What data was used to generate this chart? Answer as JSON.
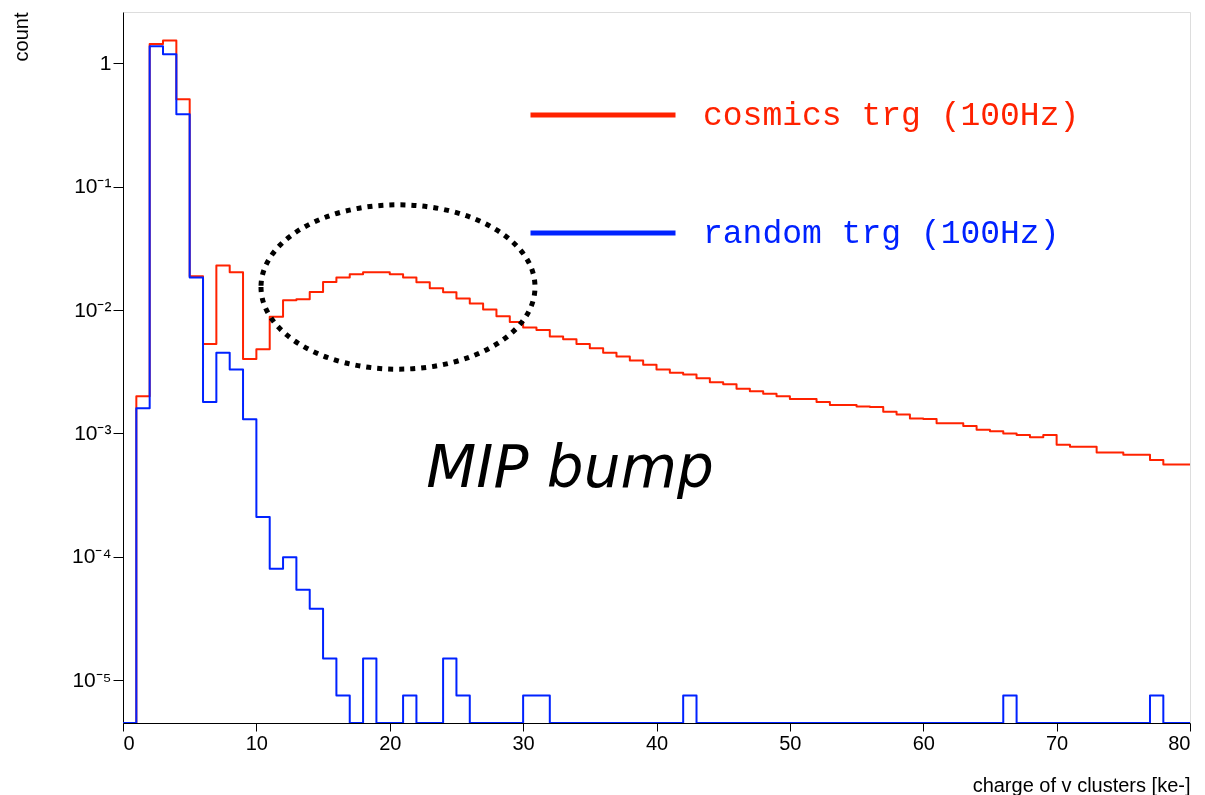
{
  "chart_data": {
    "type": "histogram",
    "xlabel": "charge of v clusters [ke-]",
    "ylabel": "count",
    "bins": [
      0,
      1,
      2,
      3,
      4,
      5,
      6,
      7,
      8,
      9,
      10,
      11,
      12,
      13,
      14,
      15,
      16,
      17,
      18,
      19,
      20,
      21,
      22,
      23,
      24,
      25,
      26,
      27,
      28,
      29,
      30,
      31,
      32,
      33,
      34,
      35,
      36,
      37,
      38,
      39,
      40,
      41,
      42,
      43,
      44,
      45,
      46,
      47,
      48,
      49,
      50,
      51,
      52,
      53,
      54,
      55,
      56,
      57,
      58,
      59,
      60,
      61,
      62,
      63,
      64,
      65,
      66,
      67,
      68,
      69,
      70,
      71,
      72,
      73,
      74,
      75,
      76,
      77,
      78,
      79,
      80
    ],
    "series": [
      {
        "name": "cosmics trg (100Hz)",
        "color": "#ff2200",
        "values": [
          null,
          0.002,
          1.43,
          1.53,
          0.51,
          0.0188,
          0.0053,
          0.0229,
          0.0202,
          0.004,
          0.0048,
          0.0088,
          0.012,
          0.0122,
          0.014,
          0.0169,
          0.0183,
          0.0195,
          0.0202,
          0.0202,
          0.0195,
          0.0183,
          0.0168,
          0.015,
          0.0139,
          0.0124,
          0.0113,
          0.0101,
          0.0089,
          0.008,
          0.0072,
          0.0069,
          0.0061,
          0.0058,
          0.0053,
          0.0049,
          0.0045,
          0.0042,
          0.0039,
          0.0036,
          0.0033,
          0.0031,
          0.003,
          0.0028,
          0.0026,
          0.0025,
          0.0023,
          0.0022,
          0.0021,
          0.002,
          0.0019,
          0.0019,
          0.0018,
          0.0017,
          0.0017,
          0.00165,
          0.00164,
          0.0015,
          0.00142,
          0.00132,
          0.00131,
          0.00121,
          0.00121,
          0.00115,
          0.00107,
          0.00104,
          0.001,
          0.00097,
          0.00093,
          0.00097,
          0.00081,
          0.00078,
          0.00078,
          0.0007,
          0.0007,
          0.00067,
          0.00067,
          0.00061,
          0.00056,
          0.00056
        ]
      },
      {
        "name": "random trg (100Hz)",
        "color": "#0022ff",
        "values": [
          null,
          0.0016,
          1.37,
          1.18,
          0.386,
          0.0183,
          0.0018,
          0.0045,
          0.0033,
          0.0013,
          0.00021,
          8e-05,
          9.9e-05,
          5.4e-05,
          3.8e-05,
          1.5e-05,
          7.5e-06,
          null,
          1.5e-05,
          null,
          null,
          7.5e-06,
          null,
          null,
          1.5e-05,
          7.5e-06,
          null,
          null,
          null,
          null,
          7.5e-06,
          7.5e-06,
          null,
          null,
          null,
          null,
          null,
          null,
          null,
          null,
          null,
          null,
          7.5e-06,
          null,
          null,
          null,
          null,
          null,
          null,
          null,
          null,
          null,
          null,
          null,
          null,
          null,
          null,
          null,
          null,
          null,
          null,
          null,
          null,
          null,
          null,
          null,
          7.5e-06,
          null,
          null,
          null,
          null,
          null,
          null,
          null,
          null,
          null,
          null,
          7.5e-06,
          null,
          null
        ]
      }
    ],
    "xlim": [
      0,
      80
    ],
    "xticks": [
      0,
      10,
      20,
      30,
      40,
      50,
      60,
      70,
      80
    ],
    "ylim": [
      4.5e-06,
      2.6
    ],
    "yticks": [
      {
        "value": 1e-05,
        "label": "10⁻⁵"
      },
      {
        "value": 0.0001,
        "label": "10⁻⁴"
      },
      {
        "value": 0.001,
        "label": "10⁻³"
      },
      {
        "value": 0.01,
        "label": "10⁻²"
      },
      {
        "value": 0.1,
        "label": "10⁻¹"
      },
      1
    ],
    "log": "y",
    "grid": false,
    "legend": "top right",
    "annotations": [
      "MIP bump"
    ]
  }
}
